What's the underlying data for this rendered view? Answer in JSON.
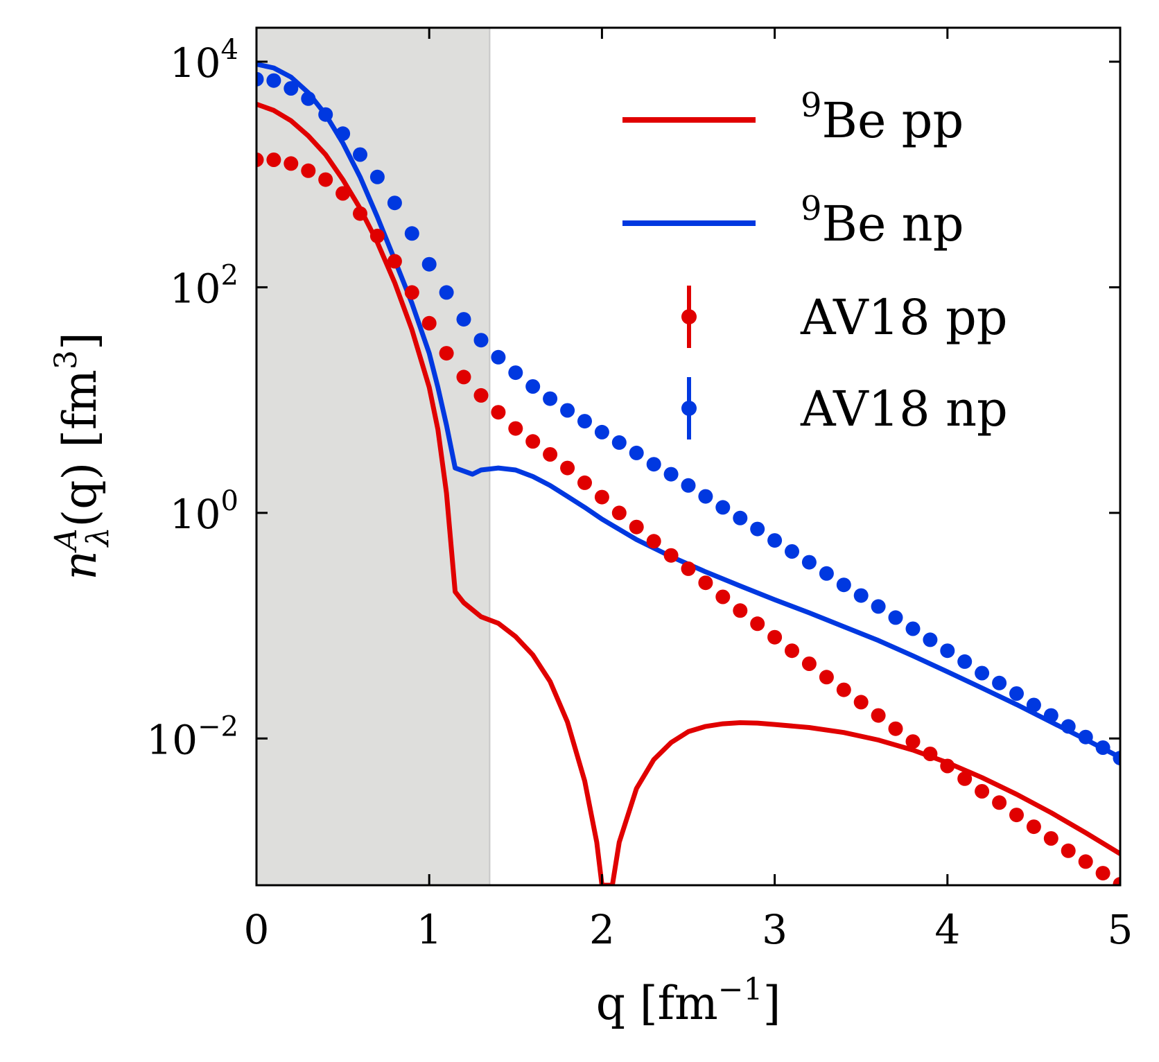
{
  "chart_data": {
    "type": "line",
    "title": "",
    "xlabel": "q [fm",
    "xlabel_sup": "−1",
    "xlabel_tail": "]",
    "ylabel_main": "n",
    "ylabel_sup": "A",
    "ylabel_sub": "λ",
    "ylabel_rest": "(q) [fm",
    "ylabel_sup2": "3",
    "ylabel_tail": "]",
    "xlim": [
      0,
      5
    ],
    "ylog": true,
    "ylim": [
      0.0005,
      20000
    ],
    "xticks": [
      0,
      1,
      2,
      3,
      4,
      5
    ],
    "x_tick_labels": [
      "0",
      "1",
      "2",
      "3",
      "4",
      "5"
    ],
    "yticks": [
      0.01,
      1,
      100,
      10000
    ],
    "y_tick_labels": [
      {
        "base": "10",
        "exp": "−2"
      },
      {
        "base": "10",
        "exp": "0"
      },
      {
        "base": "10",
        "exp": "2"
      },
      {
        "base": "10",
        "exp": "4"
      }
    ],
    "shaded_region": {
      "x0": 0,
      "x1": 1.35,
      "color": "#dededc"
    },
    "legend_position": "top-right",
    "grid": false,
    "series": [
      {
        "name": "Be pp",
        "name_sup": "9",
        "kind": "line",
        "color": "#e00000",
        "points": [
          [
            0.0,
            4200
          ],
          [
            0.1,
            3700
          ],
          [
            0.2,
            3000
          ],
          [
            0.3,
            2200
          ],
          [
            0.4,
            1500
          ],
          [
            0.5,
            900
          ],
          [
            0.6,
            500
          ],
          [
            0.7,
            250
          ],
          [
            0.8,
            110
          ],
          [
            0.9,
            42
          ],
          [
            1.0,
            13
          ],
          [
            1.05,
            5.5
          ],
          [
            1.1,
            1.5
          ],
          [
            1.15,
            0.2
          ],
          [
            1.2,
            0.16
          ],
          [
            1.3,
            0.12
          ],
          [
            1.4,
            0.105
          ],
          [
            1.5,
            0.08
          ],
          [
            1.6,
            0.055
          ],
          [
            1.7,
            0.032
          ],
          [
            1.8,
            0.014
          ],
          [
            1.9,
            0.0042
          ],
          [
            1.97,
            0.0012
          ],
          [
            2.0,
            0.0005
          ],
          [
            2.06,
            0.0005
          ],
          [
            2.1,
            0.0012
          ],
          [
            2.2,
            0.0036
          ],
          [
            2.3,
            0.0065
          ],
          [
            2.4,
            0.0092
          ],
          [
            2.5,
            0.0115
          ],
          [
            2.6,
            0.0128
          ],
          [
            2.7,
            0.0135
          ],
          [
            2.8,
            0.0138
          ],
          [
            2.9,
            0.0137
          ],
          [
            3.0,
            0.0133
          ],
          [
            3.2,
            0.0125
          ],
          [
            3.4,
            0.0113
          ],
          [
            3.6,
            0.0097
          ],
          [
            3.8,
            0.0079
          ],
          [
            4.0,
            0.0061
          ],
          [
            4.2,
            0.0045
          ],
          [
            4.4,
            0.0032
          ],
          [
            4.6,
            0.0022
          ],
          [
            4.8,
            0.00146
          ],
          [
            5.0,
            0.00095
          ]
        ]
      },
      {
        "name": "Be np",
        "name_sup": "9",
        "kind": "line",
        "color": "#0038e0",
        "points": [
          [
            0.0,
            9500
          ],
          [
            0.1,
            8800
          ],
          [
            0.2,
            7300
          ],
          [
            0.3,
            5300
          ],
          [
            0.4,
            3400
          ],
          [
            0.5,
            1900
          ],
          [
            0.6,
            950
          ],
          [
            0.7,
            420
          ],
          [
            0.8,
            175
          ],
          [
            0.9,
            72
          ],
          [
            1.0,
            26
          ],
          [
            1.05,
            13
          ],
          [
            1.1,
            6.0
          ],
          [
            1.15,
            2.5
          ],
          [
            1.25,
            2.2
          ],
          [
            1.3,
            2.4
          ],
          [
            1.4,
            2.5
          ],
          [
            1.5,
            2.4
          ],
          [
            1.6,
            2.1
          ],
          [
            1.7,
            1.75
          ],
          [
            1.8,
            1.4
          ],
          [
            1.9,
            1.12
          ],
          [
            2.0,
            0.88
          ],
          [
            2.2,
            0.58
          ],
          [
            2.4,
            0.41
          ],
          [
            2.6,
            0.3
          ],
          [
            2.8,
            0.225
          ],
          [
            3.0,
            0.17
          ],
          [
            3.2,
            0.13
          ],
          [
            3.4,
            0.098
          ],
          [
            3.6,
            0.074
          ],
          [
            3.8,
            0.054
          ],
          [
            4.0,
            0.039
          ],
          [
            4.2,
            0.028
          ],
          [
            4.4,
            0.02
          ],
          [
            4.6,
            0.014
          ],
          [
            4.8,
            0.0098
          ],
          [
            5.0,
            0.0068
          ]
        ]
      },
      {
        "name": "AV18 pp",
        "kind": "scatter",
        "color": "#e00000",
        "x": [
          0.0,
          0.1,
          0.2,
          0.3,
          0.4,
          0.5,
          0.6,
          0.7,
          0.8,
          0.9,
          1.0,
          1.1,
          1.2,
          1.3,
          1.4,
          1.5,
          1.6,
          1.7,
          1.8,
          1.9,
          2.0,
          2.1,
          2.2,
          2.3,
          2.4,
          2.5,
          2.6,
          2.7,
          2.8,
          2.9,
          3.0,
          3.1,
          3.2,
          3.3,
          3.4,
          3.5,
          3.6,
          3.7,
          3.8,
          3.9,
          4.0,
          4.1,
          4.2,
          4.3,
          4.4,
          4.5,
          4.6,
          4.7,
          4.8,
          4.9,
          5.0
        ],
        "y": [
          1350,
          1350,
          1250,
          1080,
          900,
          680,
          450,
          285,
          170,
          90,
          48,
          26,
          16,
          11,
          7.8,
          5.6,
          4.3,
          3.3,
          2.5,
          1.85,
          1.38,
          1.0,
          0.75,
          0.56,
          0.42,
          0.32,
          0.24,
          0.18,
          0.136,
          0.104,
          0.079,
          0.06,
          0.046,
          0.035,
          0.027,
          0.021,
          0.016,
          0.0122,
          0.0094,
          0.0073,
          0.0057,
          0.0044,
          0.0034,
          0.0027,
          0.0021,
          0.00165,
          0.0013,
          0.00101,
          0.00081,
          0.00064,
          0.00051
        ]
      },
      {
        "name": "AV18 np",
        "kind": "scatter",
        "color": "#0038e0",
        "x": [
          0.0,
          0.1,
          0.2,
          0.3,
          0.4,
          0.5,
          0.6,
          0.7,
          0.8,
          0.9,
          1.0,
          1.1,
          1.2,
          1.3,
          1.4,
          1.5,
          1.6,
          1.7,
          1.8,
          1.9,
          2.0,
          2.1,
          2.2,
          2.3,
          2.4,
          2.5,
          2.6,
          2.7,
          2.8,
          2.9,
          3.0,
          3.1,
          3.2,
          3.3,
          3.4,
          3.5,
          3.6,
          3.7,
          3.8,
          3.9,
          4.0,
          4.1,
          4.2,
          4.3,
          4.4,
          4.5,
          4.6,
          4.7,
          4.8,
          4.9,
          5.0
        ],
        "y": [
          7000,
          6800,
          5800,
          4700,
          3400,
          2300,
          1500,
          950,
          560,
          300,
          160,
          90,
          52,
          34,
          24,
          17.5,
          13.2,
          10.3,
          8.1,
          6.5,
          5.2,
          4.2,
          3.4,
          2.7,
          2.2,
          1.75,
          1.4,
          1.12,
          0.9,
          0.72,
          0.57,
          0.455,
          0.365,
          0.29,
          0.23,
          0.185,
          0.148,
          0.118,
          0.094,
          0.075,
          0.06,
          0.048,
          0.038,
          0.031,
          0.025,
          0.0198,
          0.016,
          0.0128,
          0.0103,
          0.0083,
          0.0067
        ]
      }
    ]
  }
}
